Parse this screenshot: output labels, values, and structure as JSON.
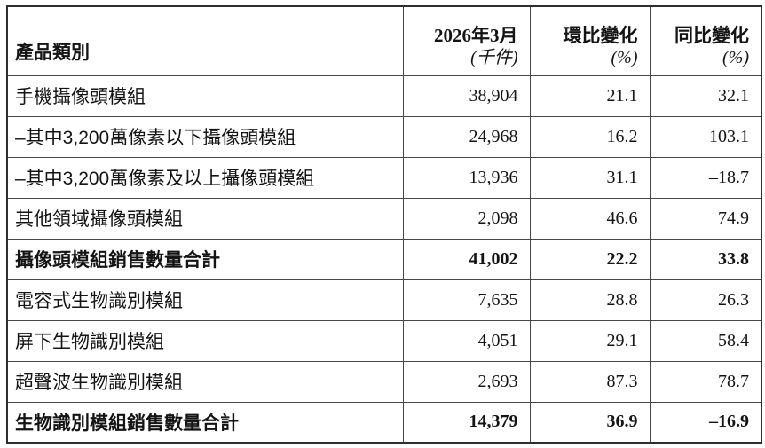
{
  "table": {
    "header": {
      "category_label": "產品類別",
      "col_value_label": "2026年3月",
      "col_value_unit": "(千件)",
      "col_mom_label": "環比變化",
      "col_mom_unit": "(%)",
      "col_yoy_label": "同比變化",
      "col_yoy_unit": "(%)"
    },
    "rows": [
      {
        "category": "手機攝像頭模組",
        "value": "38,904",
        "mom": "21.1",
        "yoy": "32.1",
        "emphasis": false
      },
      {
        "category": "–其中3,200萬像素以下攝像頭模組",
        "value": "24,968",
        "mom": "16.2",
        "yoy": "103.1",
        "emphasis": false
      },
      {
        "category": "–其中3,200萬像素及以上攝像頭模組",
        "value": "13,936",
        "mom": "31.1",
        "yoy": "–18.7",
        "emphasis": false
      },
      {
        "category": "其他領域攝像頭模組",
        "value": "2,098",
        "mom": "46.6",
        "yoy": "74.9",
        "emphasis": false
      },
      {
        "category": "攝像頭模組銷售數量合計",
        "value": "41,002",
        "mom": "22.2",
        "yoy": "33.8",
        "emphasis": true
      },
      {
        "category": "電容式生物識別模組",
        "value": "7,635",
        "mom": "28.8",
        "yoy": "26.3",
        "emphasis": false
      },
      {
        "category": "屏下生物識別模組",
        "value": "4,051",
        "mom": "29.1",
        "yoy": "–58.4",
        "emphasis": false
      },
      {
        "category": "超聲波生物識別模組",
        "value": "2,693",
        "mom": "87.3",
        "yoy": "78.7",
        "emphasis": false
      },
      {
        "category": "生物識別模組銷售數量合計",
        "value": "14,379",
        "mom": "36.9",
        "yoy": "–16.9",
        "emphasis": true
      }
    ],
    "colors": {
      "outer_border": "#2e2e2e",
      "inner_border": "#474747",
      "text": "#141414",
      "background": "#ffffff"
    }
  }
}
